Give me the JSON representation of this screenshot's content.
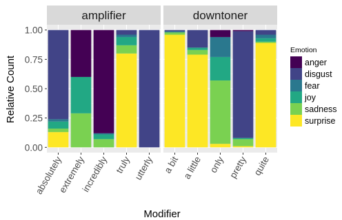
{
  "chart_data": {
    "type": "bar",
    "stacked": true,
    "facet_layout": "two facets side by side",
    "xlabel": "Modifier",
    "ylabel": "Relative Count",
    "ylim": [
      0,
      1
    ],
    "y_ticks": [
      "0.00",
      "0.25",
      "0.50",
      "0.75",
      "1.00"
    ],
    "grid": true,
    "legend": {
      "title": "Emotion",
      "position": "right",
      "items": [
        "anger",
        "disgust",
        "fear",
        "joy",
        "sadness",
        "surprise"
      ]
    },
    "colors": {
      "anger": "#440154",
      "disgust": "#414487",
      "fear": "#2a788e",
      "joy": "#22a884",
      "sadness": "#7ad151",
      "surprise": "#fde725"
    },
    "stack_order_bottom_to_top": [
      "surprise",
      "sadness",
      "joy",
      "fear",
      "disgust",
      "anger"
    ],
    "facets": [
      {
        "name": "amplifier",
        "categories": [
          "absolutely",
          "extremely",
          "incredibly",
          "truly",
          "utterly"
        ],
        "series": [
          {
            "name": "anger",
            "values": [
              0.0,
              0.4,
              0.88,
              0.0,
              0.0
            ]
          },
          {
            "name": "disgust",
            "values": [
              0.76,
              0.0,
              0.0,
              0.04,
              1.0
            ]
          },
          {
            "name": "fear",
            "values": [
              0.02,
              0.0,
              0.01,
              0.02,
              0.0
            ]
          },
          {
            "name": "joy",
            "values": [
              0.06,
              0.31,
              0.04,
              0.07,
              0.0
            ]
          },
          {
            "name": "sadness",
            "values": [
              0.03,
              0.29,
              0.07,
              0.07,
              0.0
            ]
          },
          {
            "name": "surprise",
            "values": [
              0.13,
              0.0,
              0.0,
              0.8,
              0.0
            ]
          }
        ]
      },
      {
        "name": "downtoner",
        "categories": [
          "a bit",
          "a little",
          "only",
          "pretty",
          "quite"
        ],
        "series": [
          {
            "name": "anger",
            "values": [
              0.0,
              0.0,
              0.06,
              0.01,
              0.0
            ]
          },
          {
            "name": "disgust",
            "values": [
              0.01,
              0.15,
              0.0,
              0.91,
              0.04
            ]
          },
          {
            "name": "fear",
            "values": [
              0.01,
              0.0,
              0.17,
              0.0,
              0.03
            ]
          },
          {
            "name": "joy",
            "values": [
              0.0,
              0.02,
              0.2,
              0.01,
              0.03
            ]
          },
          {
            "name": "sadness",
            "values": [
              0.02,
              0.04,
              0.54,
              0.06,
              0.01
            ]
          },
          {
            "name": "surprise",
            "values": [
              0.96,
              0.79,
              0.03,
              0.01,
              0.89
            ]
          }
        ]
      }
    ]
  }
}
